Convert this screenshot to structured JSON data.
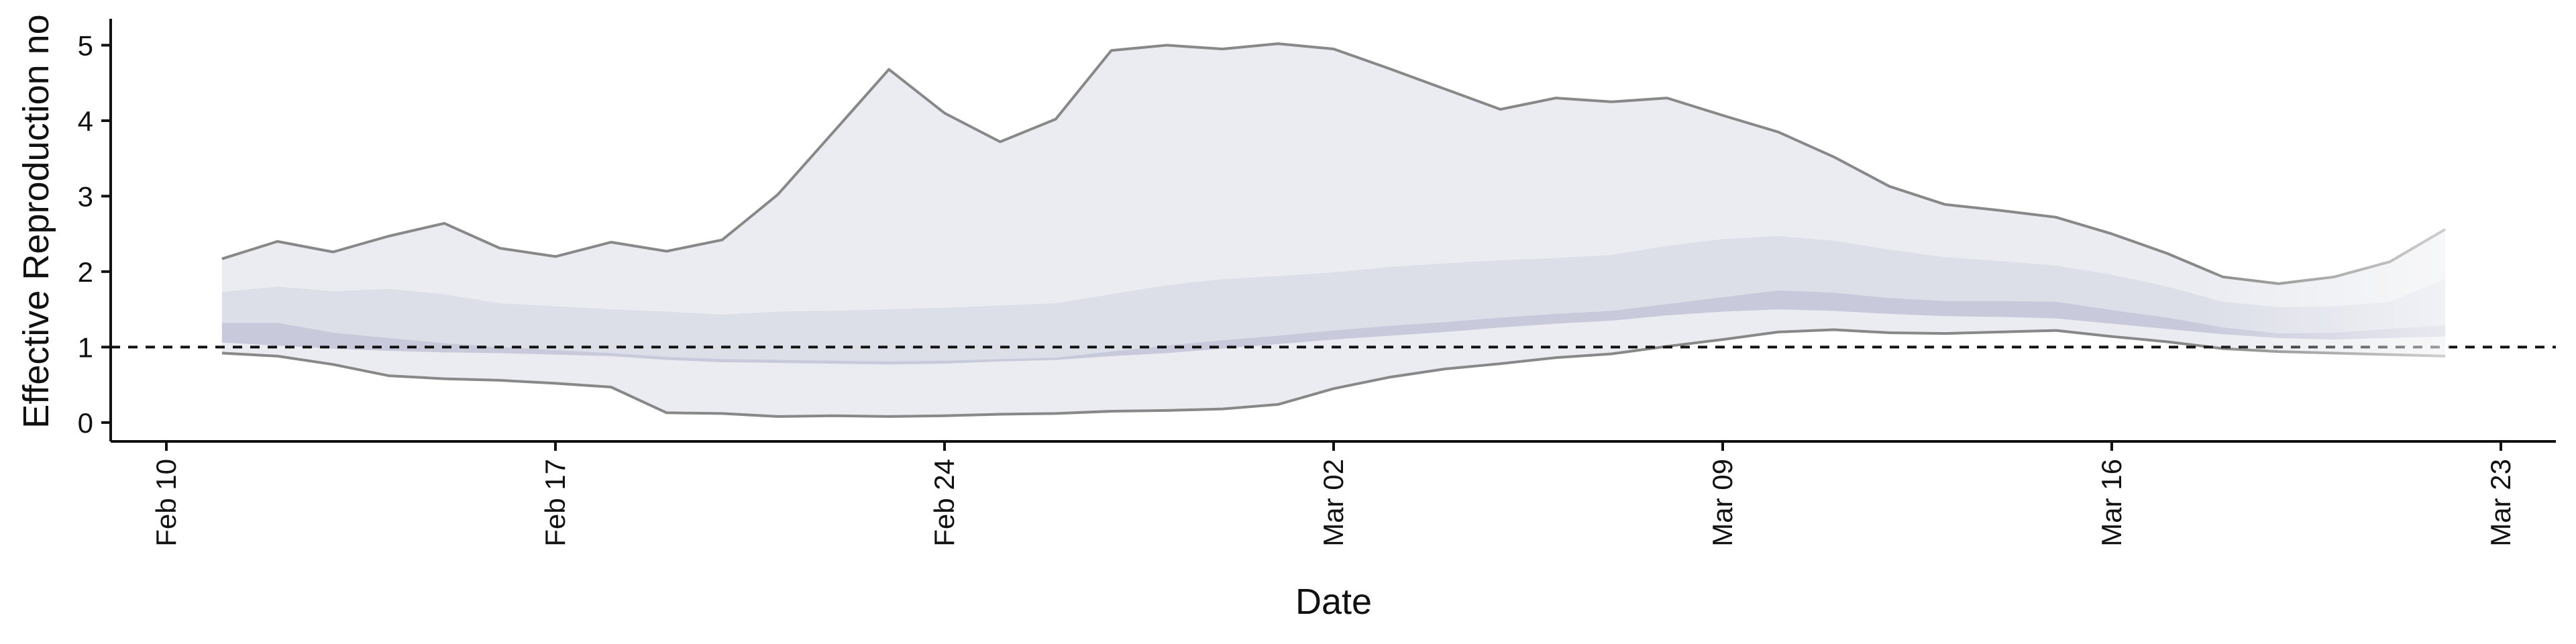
{
  "chart_data": {
    "type": "area",
    "xlabel": "Date",
    "ylabel": "Effective Reproduction no",
    "ylim": [
      -0.25,
      5.35
    ],
    "yticks": [
      0,
      1,
      2,
      3,
      4,
      5
    ],
    "xlim": [
      "2020-02-10",
      "2020-03-23"
    ],
    "xticks": [
      {
        "date": "2020-02-10",
        "label": "Feb 10"
      },
      {
        "date": "2020-02-17",
        "label": "Feb 17"
      },
      {
        "date": "2020-02-24",
        "label": "Feb 24"
      },
      {
        "date": "2020-03-02",
        "label": "Mar 02"
      },
      {
        "date": "2020-03-09",
        "label": "Mar 09"
      },
      {
        "date": "2020-03-16",
        "label": "Mar 16"
      },
      {
        "date": "2020-03-23",
        "label": "Mar 23"
      }
    ],
    "reference_line": 1,
    "dates": [
      "2020-02-11",
      "2020-02-12",
      "2020-02-13",
      "2020-02-14",
      "2020-02-15",
      "2020-02-16",
      "2020-02-17",
      "2020-02-18",
      "2020-02-19",
      "2020-02-20",
      "2020-02-21",
      "2020-02-22",
      "2020-02-23",
      "2020-02-24",
      "2020-02-25",
      "2020-02-26",
      "2020-02-27",
      "2020-02-28",
      "2020-02-29",
      "2020-03-01",
      "2020-03-02",
      "2020-03-03",
      "2020-03-04",
      "2020-03-05",
      "2020-03-06",
      "2020-03-07",
      "2020-03-08",
      "2020-03-09",
      "2020-03-10",
      "2020-03-11",
      "2020-03-12",
      "2020-03-13",
      "2020-03-14",
      "2020-03-15",
      "2020-03-16",
      "2020-03-17",
      "2020-03-18",
      "2020-03-19",
      "2020-03-20",
      "2020-03-21",
      "2020-03-22"
    ],
    "series": [
      {
        "band": "outer",
        "color": "#ebecf1",
        "upper": [
          2.17,
          2.4,
          2.26,
          2.47,
          2.64,
          2.31,
          2.2,
          2.39,
          2.27,
          2.42,
          3.02,
          3.85,
          4.68,
          4.1,
          3.72,
          4.02,
          4.93,
          5.0,
          4.95,
          5.02,
          4.95,
          4.69,
          4.42,
          4.15,
          4.3,
          4.25,
          4.3,
          4.07,
          3.85,
          3.52,
          3.13,
          2.89,
          2.81,
          2.72,
          2.5,
          2.24,
          1.93,
          1.84,
          1.93,
          2.13,
          2.56
        ],
        "lower": [
          0.92,
          0.88,
          0.77,
          0.62,
          0.58,
          0.56,
          0.52,
          0.47,
          0.13,
          0.12,
          0.08,
          0.09,
          0.08,
          0.09,
          0.11,
          0.12,
          0.15,
          0.16,
          0.18,
          0.24,
          0.45,
          0.6,
          0.71,
          0.78,
          0.86,
          0.91,
          1.01,
          1.1,
          1.2,
          1.23,
          1.19,
          1.18,
          1.2,
          1.22,
          1.14,
          1.07,
          0.98,
          0.94,
          0.92,
          0.9,
          0.88
        ]
      },
      {
        "band": "middle",
        "color": "#dcdee8",
        "upper": [
          1.73,
          1.8,
          1.74,
          1.77,
          1.7,
          1.58,
          1.54,
          1.5,
          1.47,
          1.43,
          1.47,
          1.48,
          1.5,
          1.52,
          1.55,
          1.58,
          1.7,
          1.82,
          1.9,
          1.94,
          1.99,
          2.06,
          2.11,
          2.15,
          2.18,
          2.22,
          2.34,
          2.43,
          2.47,
          2.41,
          2.29,
          2.19,
          2.14,
          2.08,
          1.96,
          1.8,
          1.6,
          1.53,
          1.54,
          1.6,
          1.9
        ],
        "lower": [
          1.06,
          1.02,
          0.98,
          0.95,
          0.93,
          0.92,
          0.9,
          0.88,
          0.83,
          0.8,
          0.79,
          0.78,
          0.77,
          0.78,
          0.81,
          0.83,
          0.88,
          0.92,
          0.98,
          1.04,
          1.1,
          1.15,
          1.2,
          1.26,
          1.31,
          1.35,
          1.42,
          1.47,
          1.5,
          1.48,
          1.44,
          1.41,
          1.4,
          1.38,
          1.31,
          1.24,
          1.17,
          1.12,
          1.1,
          1.12,
          1.14
        ]
      },
      {
        "band": "inner",
        "color": "#c8cadb",
        "upper": [
          1.32,
          1.32,
          1.19,
          1.12,
          1.05,
          1.0,
          0.96,
          0.92,
          0.87,
          0.84,
          0.83,
          0.82,
          0.81,
          0.82,
          0.84,
          0.86,
          0.94,
          1.02,
          1.09,
          1.15,
          1.22,
          1.28,
          1.33,
          1.39,
          1.44,
          1.48,
          1.57,
          1.66,
          1.75,
          1.72,
          1.65,
          1.61,
          1.61,
          1.6,
          1.49,
          1.39,
          1.26,
          1.18,
          1.19,
          1.24,
          1.29
        ],
        "lower": [
          1.06,
          1.02,
          0.98,
          0.95,
          0.93,
          0.92,
          0.9,
          0.88,
          0.83,
          0.8,
          0.79,
          0.78,
          0.77,
          0.78,
          0.81,
          0.83,
          0.88,
          0.92,
          0.98,
          1.04,
          1.1,
          1.15,
          1.2,
          1.26,
          1.31,
          1.35,
          1.42,
          1.47,
          1.5,
          1.48,
          1.44,
          1.41,
          1.4,
          1.38,
          1.31,
          1.24,
          1.17,
          1.12,
          1.1,
          1.12,
          1.14
        ]
      }
    ],
    "grid": false,
    "legend": "none"
  }
}
